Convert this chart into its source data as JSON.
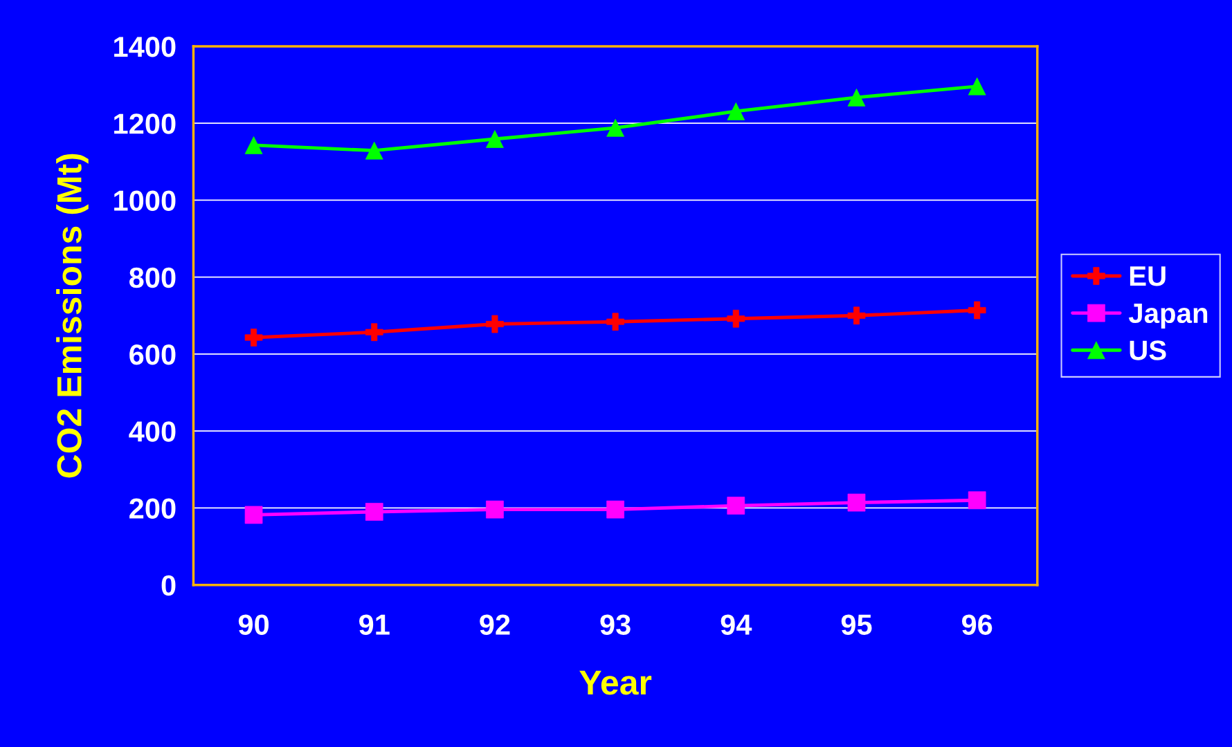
{
  "chart_data": {
    "type": "line",
    "xlabel": "Year",
    "ylabel": "CO2 Emissions (Mt)",
    "categories": [
      "90",
      "91",
      "92",
      "93",
      "94",
      "95",
      "96"
    ],
    "series": [
      {
        "name": "EU",
        "color": "#ff0000",
        "marker": "cross",
        "values": [
          643,
          657,
          678,
          684,
          692,
          700,
          714
        ]
      },
      {
        "name": "Japan",
        "color": "#ff00ff",
        "marker": "square",
        "values": [
          182,
          190,
          196,
          196,
          206,
          214,
          220
        ]
      },
      {
        "name": "US",
        "color": "#00ff00",
        "marker": "triangle",
        "values": [
          1143,
          1129,
          1159,
          1188,
          1231,
          1267,
          1296
        ]
      }
    ],
    "ylim": [
      0,
      1400
    ],
    "yticks": [
      0,
      200,
      400,
      600,
      800,
      1000,
      1200,
      1400
    ],
    "grid": "y",
    "legend": "right",
    "line_style": "solid"
  }
}
